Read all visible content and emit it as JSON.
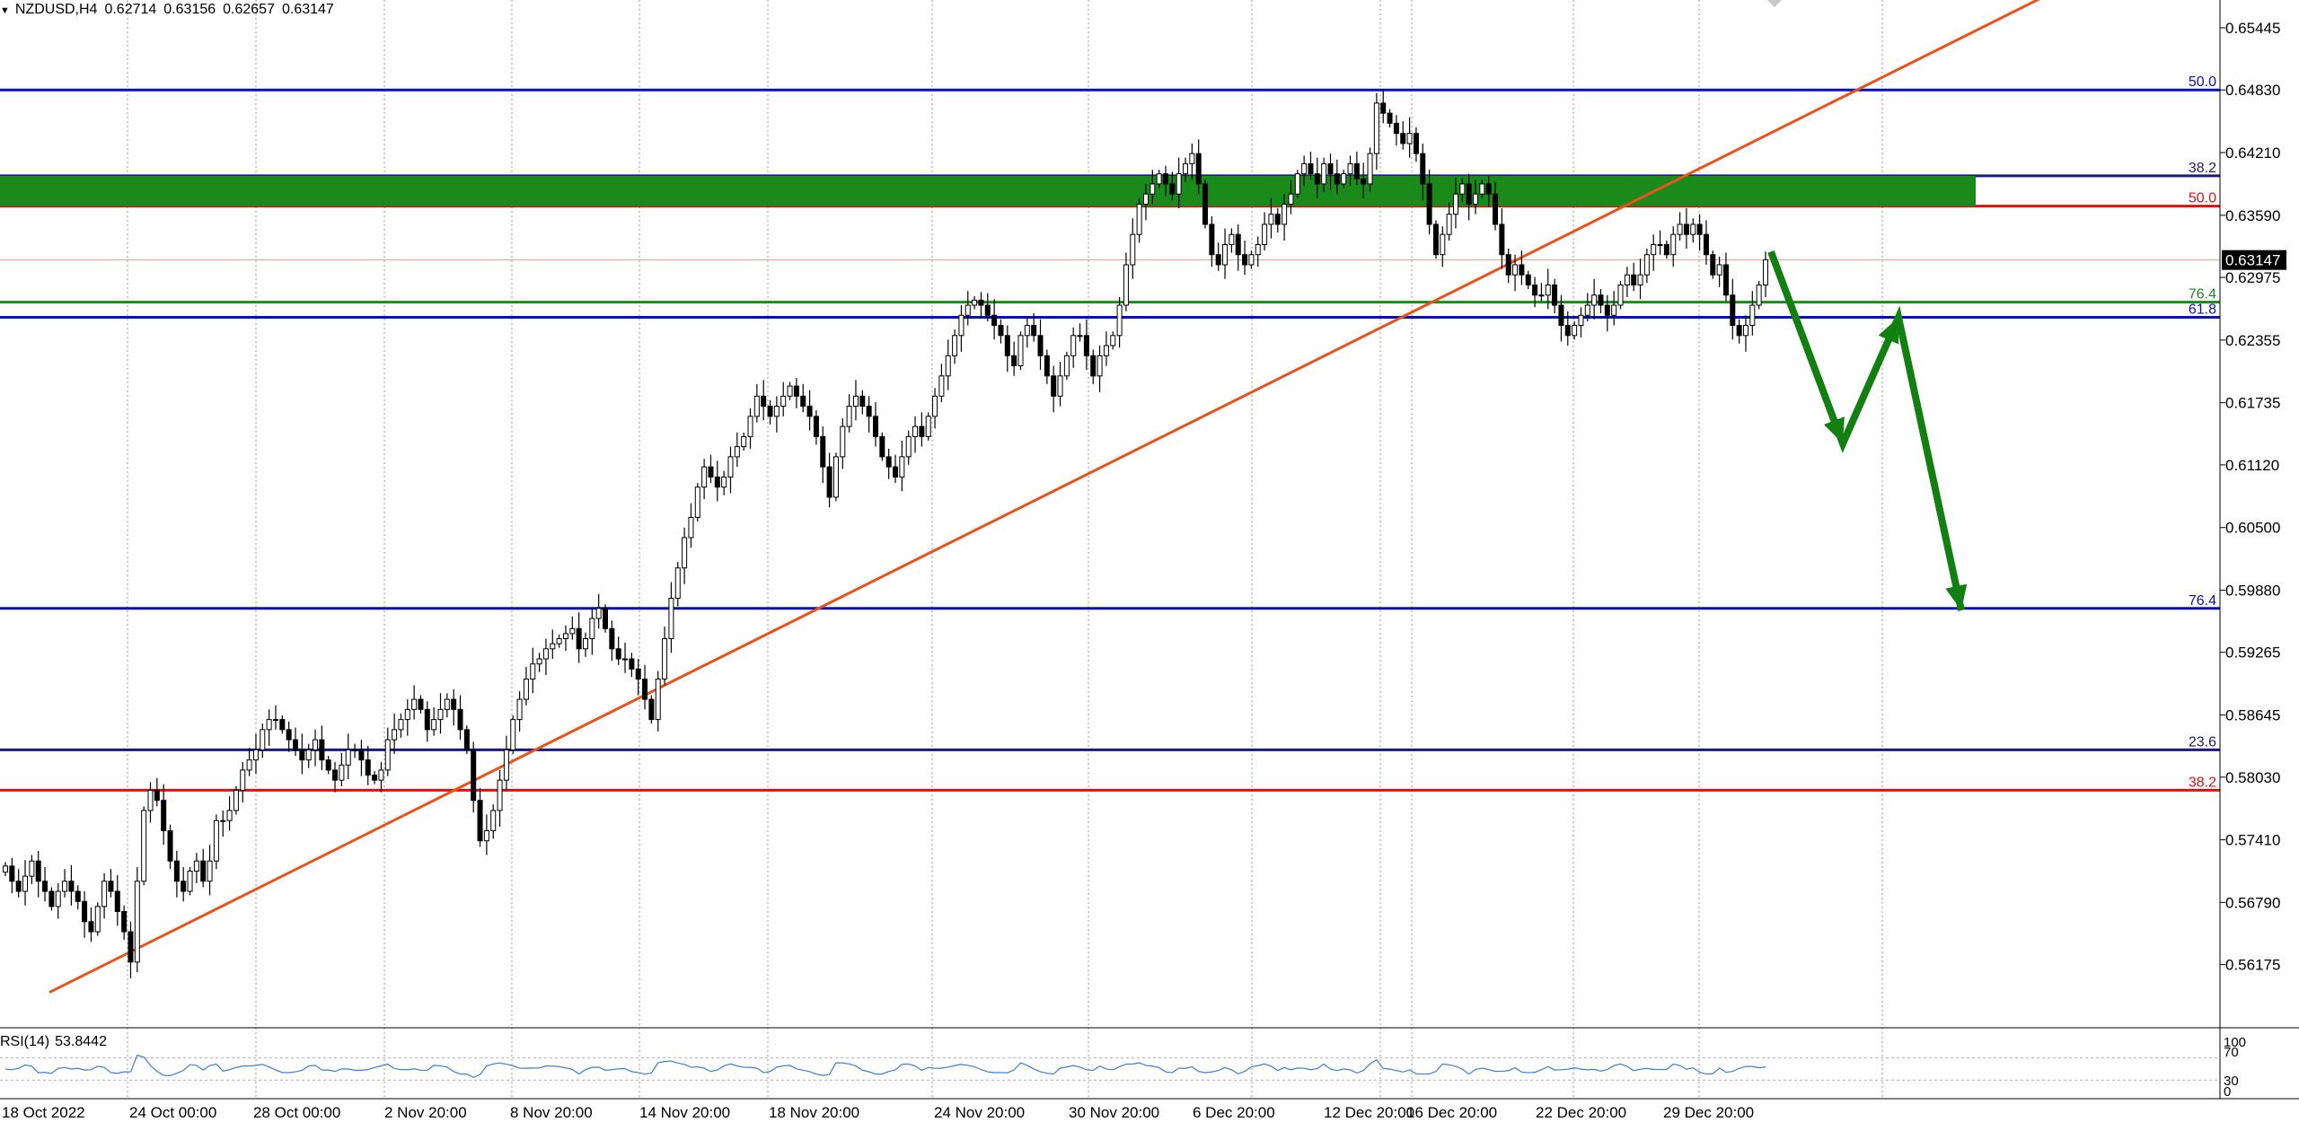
{
  "header": {
    "symbol": "NZDUSD,H4",
    "open": "0.62714",
    "high": "0.63156",
    "low": "0.62657",
    "close": "0.63147"
  },
  "indicator": {
    "name": "RSI(14)",
    "value": "53.8442",
    "levels": [
      "100",
      "70",
      "30",
      "0"
    ]
  },
  "colors": {
    "bull_candle": "#ffffff",
    "bear_candle": "#000000",
    "trendline": "#e8531d",
    "zone": "#1a8a1a",
    "fib_blue": "#0a10b8",
    "fib_navy": "#1a1a7a",
    "fib_red": "#e01010",
    "fib_green": "#1a8a1a",
    "arrow": "#118011",
    "rsi_line": "#3a7fd0",
    "current_price_bg": "#000000"
  },
  "chart_data": {
    "type": "candlestick",
    "symbol": "NZDUSD",
    "timeframe": "H4",
    "ylim": [
      0.5555,
      0.6572
    ],
    "y_ticks": [
      "0.65445",
      "0.64830",
      "0.64210",
      "0.63590",
      "0.62975",
      "0.62355",
      "0.61735",
      "0.61120",
      "0.60500",
      "0.59880",
      "0.59265",
      "0.58645",
      "0.58030",
      "0.57410",
      "0.56790",
      "0.56175"
    ],
    "x_ticks": [
      "18 Oct 2022",
      "24 Oct 00:00",
      "28 Oct 00:00",
      "2 Nov 20:00",
      "8 Nov 20:00",
      "14 Nov 20:00",
      "18 Nov 20:00",
      "24 Nov 20:00",
      "30 Nov 20:00",
      "6 Dec 20:00",
      "12 Dec 20:00",
      "16 Dec 20:00",
      "22 Dec 20:00",
      "29 Dec 20:00"
    ],
    "current_price": "0.63147",
    "closes": [
      0.5715,
      0.57,
      0.569,
      0.5705,
      0.572,
      0.57,
      0.569,
      0.5675,
      0.569,
      0.57,
      0.569,
      0.568,
      0.566,
      0.565,
      0.5675,
      0.57,
      0.569,
      0.567,
      0.565,
      0.562,
      0.57,
      0.577,
      0.579,
      0.578,
      0.575,
      0.572,
      0.57,
      0.569,
      0.571,
      0.572,
      0.57,
      0.572,
      0.576,
      0.576,
      0.577,
      0.579,
      0.581,
      0.582,
      0.583,
      0.585,
      0.586,
      0.586,
      0.585,
      0.584,
      0.583,
      0.582,
      0.583,
      0.584,
      0.582,
      0.581,
      0.58,
      0.5815,
      0.583,
      0.583,
      0.582,
      0.5805,
      0.58,
      0.581,
      0.584,
      0.585,
      0.586,
      0.587,
      0.588,
      0.587,
      0.585,
      0.586,
      0.587,
      0.588,
      0.587,
      0.585,
      0.583,
      0.578,
      0.574,
      0.575,
      0.577,
      0.58,
      0.583,
      0.586,
      0.588,
      0.59,
      0.5915,
      0.592,
      0.593,
      0.5935,
      0.594,
      0.5945,
      0.595,
      0.593,
      0.594,
      0.596,
      0.597,
      0.595,
      0.593,
      0.592,
      0.592,
      0.591,
      0.59,
      0.588,
      0.586,
      0.59,
      0.594,
      0.598,
      0.601,
      0.604,
      0.606,
      0.609,
      0.611,
      0.61,
      0.609,
      0.61,
      0.612,
      0.613,
      0.614,
      0.616,
      0.618,
      0.617,
      0.616,
      0.617,
      0.618,
      0.619,
      0.618,
      0.617,
      0.616,
      0.614,
      0.611,
      0.608,
      0.612,
      0.615,
      0.617,
      0.618,
      0.617,
      0.616,
      0.614,
      0.612,
      0.611,
      0.61,
      0.612,
      0.614,
      0.615,
      0.614,
      0.616,
      0.618,
      0.62,
      0.622,
      0.624,
      0.626,
      0.627,
      0.6275,
      0.627,
      0.626,
      0.625,
      0.624,
      0.622,
      0.621,
      0.624,
      0.625,
      0.624,
      0.622,
      0.62,
      0.618,
      0.62,
      0.622,
      0.624,
      0.624,
      0.622,
      0.62,
      0.622,
      0.623,
      0.624,
      0.627,
      0.631,
      0.634,
      0.637,
      0.638,
      0.639,
      0.64,
      0.639,
      0.638,
      0.64,
      0.641,
      0.642,
      0.639,
      0.635,
      0.632,
      0.631,
      0.633,
      0.634,
      0.632,
      0.631,
      0.632,
      0.633,
      0.635,
      0.636,
      0.635,
      0.637,
      0.638,
      0.64,
      0.641,
      0.64,
      0.639,
      0.641,
      0.64,
      0.639,
      0.64,
      0.641,
      0.6395,
      0.639,
      0.642,
      0.647,
      0.646,
      0.645,
      0.644,
      0.643,
      0.644,
      0.642,
      0.639,
      0.635,
      0.632,
      0.634,
      0.636,
      0.638,
      0.639,
      0.637,
      0.638,
      0.639,
      0.638,
      0.635,
      0.632,
      0.63,
      0.631,
      0.63,
      0.629,
      0.628,
      0.628,
      0.629,
      0.627,
      0.625,
      0.624,
      0.625,
      0.626,
      0.627,
      0.628,
      0.627,
      0.626,
      0.627,
      0.629,
      0.63,
      0.629,
      0.63,
      0.632,
      0.633,
      0.633,
      0.632,
      0.634,
      0.635,
      0.634,
      0.635,
      0.634,
      0.632,
      0.63,
      0.631,
      0.628,
      0.625,
      0.624,
      0.625,
      0.627,
      0.629,
      0.6315
    ],
    "overlays": {
      "resistance_zone": [
        0.6368,
        0.6398
      ],
      "fib_levels": [
        {
          "label": "50.0",
          "price": 0.6483,
          "color": "blue"
        },
        {
          "label": "38.2",
          "price": 0.6398,
          "color": "navy"
        },
        {
          "label": "50.0",
          "price": 0.6368,
          "color": "red"
        },
        {
          "label": "76.4",
          "price": 0.6273,
          "color": "green"
        },
        {
          "label": "61.8",
          "price": 0.6258,
          "color": "blue"
        },
        {
          "label": "76.4",
          "price": 0.597,
          "color": "blue"
        },
        {
          "label": "23.6",
          "price": 0.583,
          "color": "navy"
        },
        {
          "label": "38.2",
          "price": 0.579,
          "color": "red"
        }
      ],
      "trendline": {
        "from": {
          "date": "18 Oct 2022",
          "price": 0.559
        },
        "to": {
          "date": "29 Dec 20:00",
          "price": 0.6405
        }
      },
      "projection_arrow": [
        0.6323,
        0.6133,
        0.6258,
        0.5968
      ]
    },
    "rsi_last": 53.8442
  }
}
